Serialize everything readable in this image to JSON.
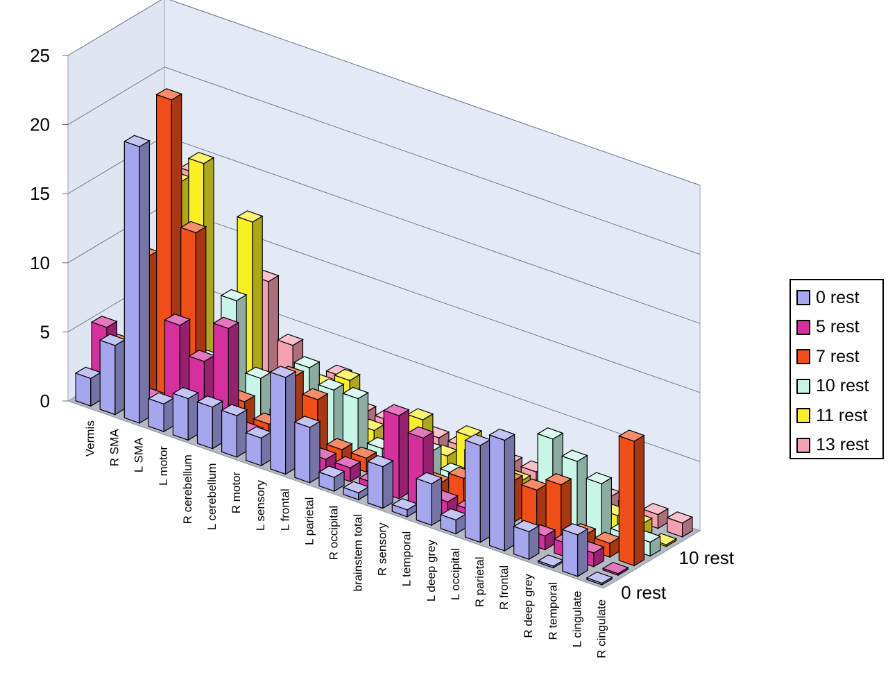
{
  "chart_data": {
    "type": "bar",
    "subtype": "3d-clustered-depth",
    "title": "",
    "xlabel": "",
    "ylabel": "",
    "ylim": [
      0,
      25
    ],
    "yticks": [
      "0",
      "5",
      "10",
      "15",
      "20",
      "25"
    ],
    "grid": true,
    "legend_position": "right",
    "categories": [
      "Vermis",
      "R SMA",
      "L SMA",
      "L motor",
      "R cerebellum",
      "L cerebellum",
      "R motor",
      "L sensory",
      "L frontal",
      "L parietal",
      "R occipital",
      "brainstem total",
      "R sensory",
      "L temporal",
      "L deep grey",
      "L occipital",
      "R parietal",
      "R frontal",
      "R deep grey",
      "R temporal",
      "L cingulate",
      "R cingulate"
    ],
    "depth_labels": [
      "10 rest",
      "0 rest"
    ],
    "series": [
      {
        "name": "0 rest",
        "color": "#a6a6ee",
        "values": [
          2,
          5,
          20,
          2,
          3,
          3,
          3,
          2,
          7,
          4,
          1,
          0.5,
          3,
          0.5,
          3,
          1,
          7,
          8,
          2,
          0,
          3,
          0
        ]
      },
      {
        "name": "5 rest",
        "color": "#d62f9e",
        "values": [
          5,
          1,
          1,
          7,
          5,
          8,
          1,
          1,
          1,
          1,
          1,
          0.5,
          6,
          5,
          1,
          1,
          2,
          0,
          1,
          1,
          1,
          0
        ]
      },
      {
        "name": "7 rest",
        "color": "#f05018",
        "values": [
          3,
          10,
          22,
          13,
          1,
          2,
          1,
          5,
          4,
          1,
          1,
          1,
          2,
          1,
          2,
          1,
          3,
          3,
          4,
          1,
          1,
          9
        ]
      },
      {
        "name": "10 rest",
        "color": "#c8f5e8",
        "values": [
          1,
          1,
          1,
          3,
          8,
          3,
          1,
          5,
          4,
          4,
          1,
          1,
          2,
          1,
          3,
          1,
          1,
          6,
          5,
          4,
          1,
          1
        ]
      },
      {
        "name": "11 rest",
        "color": "#f8f022",
        "values": [
          4,
          14,
          16,
          2,
          13,
          2,
          3,
          3,
          4,
          1,
          2,
          3,
          1,
          3,
          1,
          1,
          1,
          1,
          1,
          1,
          1,
          0
        ]
      },
      {
        "name": "13 rest",
        "color": "#f4a0b0",
        "values": [
          4,
          14,
          3,
          5,
          8,
          4,
          1,
          3,
          1,
          1,
          1,
          1,
          1,
          1,
          1,
          1,
          1,
          1,
          1,
          1,
          1,
          1
        ]
      }
    ]
  }
}
